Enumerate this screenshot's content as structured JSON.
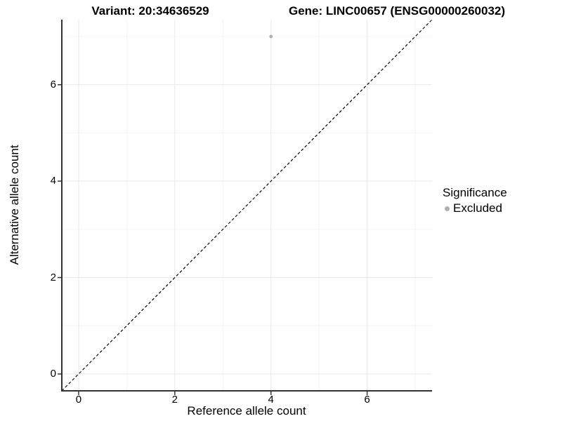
{
  "chart_data": {
    "type": "scatter",
    "title_left": "Variant: 20:34636529",
    "title_right": "Gene: LINC00657 (ENSG00000260032)",
    "xlabel": "Reference allele count",
    "ylabel": "Alternative allele count",
    "xlim": [
      -0.35,
      7.35
    ],
    "ylim": [
      -0.35,
      7.35
    ],
    "x_ticks": [
      0,
      2,
      4,
      6
    ],
    "y_ticks": [
      0,
      2,
      4,
      6
    ],
    "x_minor": [
      1,
      3,
      5,
      7
    ],
    "y_minor": [
      1,
      3,
      5,
      7
    ],
    "grid": true,
    "identity_line": {
      "style": "dashed",
      "from": -0.35,
      "to": 7.35,
      "color": "#000000"
    },
    "series": [
      {
        "name": "Excluded",
        "color": "#b0b0b0",
        "points": [
          {
            "x": 4,
            "y": 7
          }
        ]
      }
    ],
    "legend": {
      "title": "Significance",
      "position": "right",
      "items": [
        {
          "label": "Excluded",
          "color": "#b0b0b0"
        }
      ]
    },
    "colors": {
      "axis_line": "#333333",
      "grid_major": "#e9e9e9",
      "grid_minor": "#f4f4f4",
      "point_excluded": "#b0b0b0"
    }
  }
}
